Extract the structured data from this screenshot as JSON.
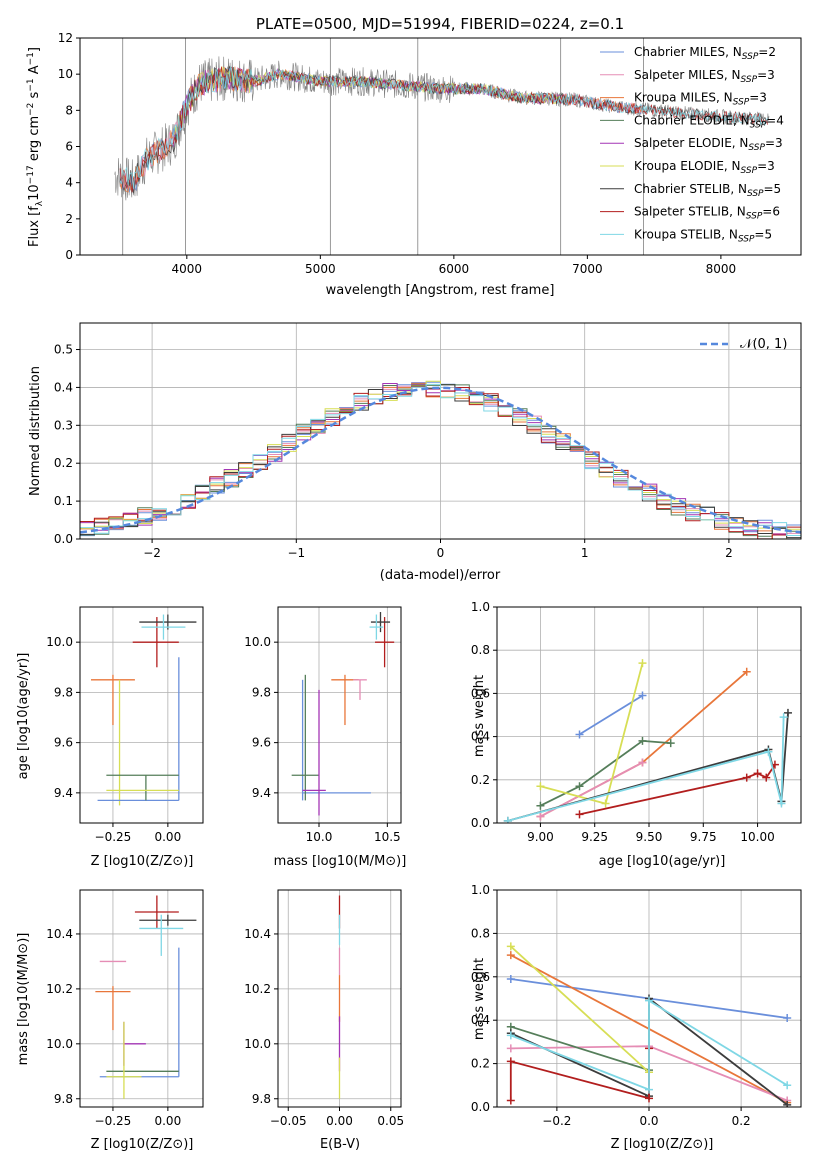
{
  "chart_data": [
    {
      "id": "spectrum",
      "type": "line",
      "title": "PLATE=0500, MJD=51994, FIBERID=0224, z=0.1",
      "xlabel": "wavelength [Angstrom, rest frame]",
      "ylabel": "Flux [f_λ 10^-17 erg cm^-2 s^-1 A^-1]",
      "xlim": [
        3200,
        8600
      ],
      "ylim": [
        0,
        12
      ],
      "xticks": [
        "4000",
        "5000",
        "6000",
        "7000",
        "8000"
      ],
      "yticks": [
        "0",
        "2",
        "4",
        "6",
        "8",
        "10",
        "12"
      ],
      "grid": false,
      "legend_position": "upper right",
      "continuum_points": [
        [
          3450,
          4.5
        ],
        [
          3600,
          4.0
        ],
        [
          3700,
          5.3
        ],
        [
          3800,
          5.8
        ],
        [
          3900,
          6.3
        ],
        [
          4000,
          8.3
        ],
        [
          4100,
          9.5
        ],
        [
          4300,
          9.8
        ],
        [
          4500,
          9.6
        ],
        [
          4700,
          10.0
        ],
        [
          5000,
          9.6
        ],
        [
          5300,
          9.6
        ],
        [
          5600,
          9.4
        ],
        [
          5900,
          9.2
        ],
        [
          6200,
          9.2
        ],
        [
          6500,
          8.7
        ],
        [
          6900,
          8.6
        ],
        [
          7200,
          8.2
        ],
        [
          7500,
          8.0
        ],
        [
          7800,
          7.8
        ],
        [
          8100,
          7.6
        ],
        [
          8350,
          7.5
        ]
      ],
      "series": [
        {
          "name": "Chabrier MILES, N_SSP=2",
          "color": "#6a8fdb",
          "range": [
            3500,
            7420
          ]
        },
        {
          "name": "Salpeter MILES, N_SSP=3",
          "color": "#e58db5",
          "range": [
            3500,
            7420
          ]
        },
        {
          "name": "Kroupa MILES, N_SSP=3",
          "color": "#e8763a",
          "range": [
            3500,
            7420
          ]
        },
        {
          "name": "Chabrier ELODIE, N_SSP=4",
          "color": "#557e5a",
          "range": [
            3900,
            6800
          ]
        },
        {
          "name": "Salpeter ELODIE, N_SSP=3",
          "color": "#a335b5",
          "range": [
            3900,
            6800
          ]
        },
        {
          "name": "Kroupa ELODIE, N_SSP=3",
          "color": "#d7de55",
          "range": [
            3900,
            6800
          ]
        },
        {
          "name": "Chabrier STELIB, N_SSP=5",
          "color": "#3c3c3c",
          "range": [
            3500,
            8350
          ]
        },
        {
          "name": "Salpeter STELIB, N_SSP=6",
          "color": "#b21e1e",
          "range": [
            3500,
            8350
          ]
        },
        {
          "name": "Kroupa STELIB, N_SSP=5",
          "color": "#7fd7e5",
          "range": [
            3500,
            8350
          ]
        }
      ]
    },
    {
      "id": "residuals",
      "type": "line",
      "title": "",
      "xlabel": "(data-model)/error",
      "ylabel": "Normed distribution",
      "xlim": [
        -2.5,
        2.5
      ],
      "ylim": [
        0,
        0.57
      ],
      "xticks": [
        "−2",
        "−1",
        "0",
        "1",
        "2"
      ],
      "yticks": [
        "0.0",
        "0.1",
        "0.2",
        "0.3",
        "0.4",
        "0.5"
      ],
      "grid": true,
      "legend_position": "upper right",
      "legend": "𝒩(0, 1)",
      "series_colors": [
        "#6a8fdb",
        "#e58db5",
        "#e8763a",
        "#557e5a",
        "#a335b5",
        "#d7de55",
        "#3c3c3c",
        "#b21e1e",
        "#7fd7e5"
      ],
      "reference_curve": {
        "mean": 0,
        "sigma": 1,
        "color": "#5588dd"
      }
    },
    {
      "id": "age_vs_Z",
      "type": "scatter",
      "xlabel": "Z [log10(Z/Z⊙)]",
      "ylabel": "age  [log10(age/yr)]",
      "xlim": [
        -0.4,
        0.16
      ],
      "ylim": [
        9.28,
        10.14
      ],
      "xticks": [
        "−0.25",
        "0.00"
      ],
      "xtick_values": [
        -0.25,
        0
      ],
      "yticks": [
        "9.4",
        "9.6",
        "9.8",
        "10.0"
      ],
      "ytick_values": [
        9.4,
        9.6,
        9.8,
        10.0
      ],
      "points": [
        {
          "x": -0.05,
          "y": 10.0,
          "ex": [
            -0.11,
            0.1
          ],
          "ey": [
            -0.1,
            0.1
          ],
          "color": "#b21e1e"
        },
        {
          "x": 0.0,
          "y": 10.08,
          "ex": [
            -0.13,
            0.13
          ],
          "ey": [
            -0.03,
            0.03
          ],
          "color": "#3c3c3c"
        },
        {
          "x": -0.02,
          "y": 10.06,
          "ex": [
            -0.1,
            0.1
          ],
          "ey": [
            -0.05,
            0.05
          ],
          "color": "#7fd7e5"
        },
        {
          "x": -0.25,
          "y": 9.85,
          "ex": [
            -0.1,
            0.1
          ],
          "ey": [
            -0.18,
            0.02
          ],
          "color": "#e8763a"
        },
        {
          "x": -0.22,
          "y": 9.85,
          "ex": [
            0,
            0
          ],
          "ey": [
            -0.5,
            0.0
          ],
          "color": "#d7de55"
        },
        {
          "x": 0.05,
          "y": 9.37,
          "ex": [
            -0.37,
            0
          ],
          "ey": [
            0,
            0.57
          ],
          "color": "#6a8fdb"
        },
        {
          "x": -0.1,
          "y": 9.47,
          "ex": [
            -0.18,
            0.15
          ],
          "ey": [
            -0.1,
            0
          ],
          "color": "#557e5a"
        },
        {
          "x": -0.1,
          "y": 9.41,
          "ex": [
            -0.18,
            0.15
          ],
          "ey": [
            0,
            0
          ],
          "color": "#d7de55"
        }
      ]
    },
    {
      "id": "age_vs_mass",
      "type": "scatter",
      "xlabel": "mass [log10(M/M⊙)]",
      "ylabel": "",
      "xlim": [
        9.7,
        10.6
      ],
      "ylim": [
        9.28,
        10.14
      ],
      "xticks": [
        "10.0",
        "10.5"
      ],
      "xtick_values": [
        10.0,
        10.5
      ],
      "yticks": [
        "9.4",
        "9.6",
        "9.8",
        "10.0"
      ],
      "ytick_values": [
        9.4,
        9.6,
        9.8,
        10.0
      ],
      "points": [
        {
          "x": 10.48,
          "y": 10.0,
          "ex": [
            -0.07,
            0.07
          ],
          "ey": [
            -0.1,
            0.1
          ],
          "color": "#b21e1e"
        },
        {
          "x": 10.45,
          "y": 10.08,
          "ex": [
            -0.07,
            0.07
          ],
          "ey": [
            -0.04,
            0.04
          ],
          "color": "#3c3c3c"
        },
        {
          "x": 10.42,
          "y": 10.06,
          "ex": [
            -0.05,
            0.05
          ],
          "ey": [
            -0.05,
            0.05
          ],
          "color": "#7fd7e5"
        },
        {
          "x": 10.19,
          "y": 9.85,
          "ex": [
            -0.1,
            0.1
          ],
          "ey": [
            -0.18,
            0.02
          ],
          "color": "#e8763a"
        },
        {
          "x": 10.3,
          "y": 9.85,
          "ex": [
            -0.05,
            0.05
          ],
          "ey": [
            -0.08,
            0.0
          ],
          "color": "#e58db5"
        },
        {
          "x": 9.88,
          "y": 9.4,
          "ex": [
            0,
            0.5
          ],
          "ey": [
            -0.03,
            0.45
          ],
          "color": "#6a8fdb"
        },
        {
          "x": 9.9,
          "y": 9.47,
          "ex": [
            -0.1,
            0.1
          ],
          "ey": [
            -0.1,
            0.4
          ],
          "color": "#557e5a"
        },
        {
          "x": 10.0,
          "y": 9.41,
          "ex": [
            -0.12,
            0.05
          ],
          "ey": [
            -0.1,
            0.4
          ],
          "color": "#a335b5"
        }
      ]
    },
    {
      "id": "massweight_vs_age",
      "type": "line",
      "xlabel": "age  [log10(age/yr)]",
      "ylabel": "mass weight",
      "xlim": [
        8.8,
        10.2
      ],
      "ylim": [
        0,
        1.0
      ],
      "xticks": [
        "9.00",
        "9.25",
        "9.50",
        "9.75",
        "10.00"
      ],
      "xtick_values": [
        9.0,
        9.25,
        9.5,
        9.75,
        10.0
      ],
      "yticks": [
        "0.0",
        "0.2",
        "0.4",
        "0.6",
        "0.8",
        "1.0"
      ],
      "ytick_values": [
        0,
        0.2,
        0.4,
        0.6,
        0.8,
        1.0
      ],
      "series": [
        {
          "name": "Chabrier MILES",
          "color": "#6a8fdb",
          "points": [
            [
              9.18,
              0.41
            ],
            [
              9.47,
              0.59
            ]
          ]
        },
        {
          "name": "Kroupa MILES",
          "color": "#e8763a",
          "points": [
            [
              9.0,
              0.03
            ],
            [
              9.47,
              0.28
            ],
            [
              9.95,
              0.7
            ]
          ]
        },
        {
          "name": "Salpeter MILES",
          "color": "#e58db5",
          "points": [
            [
              9.0,
              0.03
            ],
            [
              9.47,
              0.28
            ]
          ]
        },
        {
          "name": "Chabrier ELODIE",
          "color": "#557e5a",
          "points": [
            [
              9.0,
              0.08
            ],
            [
              9.18,
              0.17
            ],
            [
              9.47,
              0.38
            ],
            [
              9.6,
              0.37
            ]
          ]
        },
        {
          "name": "Kroupa ELODIE",
          "color": "#d7de55",
          "points": [
            [
              9.0,
              0.17
            ],
            [
              9.3,
              0.09
            ],
            [
              9.47,
              0.74
            ]
          ]
        },
        {
          "name": "Chabrier STELIB",
          "color": "#3c3c3c",
          "points": [
            [
              8.85,
              0.01
            ],
            [
              10.05,
              0.34
            ],
            [
              10.11,
              0.1
            ],
            [
              10.14,
              0.51
            ]
          ]
        },
        {
          "name": "Salpeter STELIB",
          "color": "#b21e1e",
          "points": [
            [
              9.18,
              0.04
            ],
            [
              9.95,
              0.21
            ],
            [
              10.0,
              0.23
            ],
            [
              10.04,
              0.21
            ],
            [
              10.08,
              0.27
            ]
          ]
        },
        {
          "name": "Kroupa STELIB",
          "color": "#7fd7e5",
          "points": [
            [
              8.85,
              0.01
            ],
            [
              10.05,
              0.33
            ],
            [
              10.11,
              0.09
            ],
            [
              10.12,
              0.49
            ]
          ]
        }
      ]
    },
    {
      "id": "mass_vs_Z",
      "type": "scatter",
      "xlabel": "Z [log10(Z/Z⊙)]",
      "ylabel": "mass [log10(M/M⊙)]",
      "xlim": [
        -0.4,
        0.16
      ],
      "ylim": [
        9.77,
        10.56
      ],
      "xticks": [
        "−0.25",
        "0.00"
      ],
      "xtick_values": [
        -0.25,
        0
      ],
      "yticks": [
        "9.8",
        "10.0",
        "10.2",
        "10.4"
      ],
      "ytick_values": [
        9.8,
        10.0,
        10.2,
        10.4
      ],
      "points": [
        {
          "x": -0.05,
          "y": 10.48,
          "ex": [
            -0.1,
            0.1
          ],
          "ey": [
            -0.06,
            0.06
          ],
          "color": "#b21e1e"
        },
        {
          "x": 0.0,
          "y": 10.45,
          "ex": [
            -0.13,
            0.13
          ],
          "ey": [
            -0.02,
            0.02
          ],
          "color": "#3c3c3c"
        },
        {
          "x": -0.03,
          "y": 10.42,
          "ex": [
            -0.1,
            0.1
          ],
          "ey": [
            -0.1,
            0.05
          ],
          "color": "#7fd7e5"
        },
        {
          "x": -0.25,
          "y": 10.19,
          "ex": [
            -0.08,
            0.08
          ],
          "ey": [
            -0.14,
            0.02
          ],
          "color": "#e8763a"
        },
        {
          "x": -0.25,
          "y": 10.3,
          "ex": [
            -0.06,
            0.06
          ],
          "ey": [
            0,
            0
          ],
          "color": "#e58db5"
        },
        {
          "x": 0.05,
          "y": 9.88,
          "ex": [
            -0.36,
            0
          ],
          "ey": [
            0,
            0.47
          ],
          "color": "#6a8fdb"
        },
        {
          "x": -0.1,
          "y": 9.9,
          "ex": [
            -0.18,
            0.15
          ],
          "ey": [
            0,
            0
          ],
          "color": "#557e5a"
        },
        {
          "x": -0.2,
          "y": 10.0,
          "ex": [
            0,
            0.1
          ],
          "ey": [
            -0.08,
            0.08
          ],
          "color": "#a335b5"
        },
        {
          "x": -0.2,
          "y": 9.88,
          "ex": [
            -0.08,
            0.08
          ],
          "ey": [
            -0.08,
            0.2
          ],
          "color": "#d7de55"
        }
      ]
    },
    {
      "id": "mass_vs_EBV",
      "type": "scatter",
      "xlabel": "E(B-V)",
      "ylabel": "",
      "xlim": [
        -0.06,
        0.06
      ],
      "ylim": [
        9.77,
        10.56
      ],
      "xticks": [
        "−0.05",
        "0.00",
        "0.05"
      ],
      "xtick_values": [
        -0.05,
        0,
        0.05
      ],
      "yticks": [
        "9.8",
        "10.0",
        "10.2",
        "10.4"
      ],
      "ytick_values": [
        9.8,
        10.0,
        10.2,
        10.4
      ],
      "points": [
        {
          "x": 0,
          "y": 10.48,
          "ex": [
            0,
            0
          ],
          "ey": [
            -0.06,
            0.06
          ],
          "color": "#b21e1e"
        },
        {
          "x": 0,
          "y": 10.3,
          "ex": [
            0,
            0
          ],
          "ey": [
            -0.05,
            0.05
          ],
          "color": "#e58db5"
        },
        {
          "x": 0,
          "y": 10.2,
          "ex": [
            0,
            0
          ],
          "ey": [
            -0.12,
            0.05
          ],
          "color": "#e8763a"
        },
        {
          "x": 0,
          "y": 10.0,
          "ex": [
            0,
            0
          ],
          "ey": [
            -0.1,
            0.1
          ],
          "color": "#a335b5"
        },
        {
          "x": 0,
          "y": 9.9,
          "ex": [
            0,
            0
          ],
          "ey": [
            -0.1,
            0.05
          ],
          "color": "#d7de55"
        },
        {
          "x": 0,
          "y": 10.42,
          "ex": [
            0,
            0
          ],
          "ey": [
            -0.06,
            0.05
          ],
          "color": "#7fd7e5"
        }
      ]
    },
    {
      "id": "massweight_vs_Z",
      "type": "line",
      "xlabel": "Z [log10(Z/Z⊙)]",
      "ylabel": "mass weight",
      "xlim": [
        -0.33,
        0.33
      ],
      "ylim": [
        0,
        1.0
      ],
      "xticks": [
        "−0.2",
        "0.0",
        "0.2"
      ],
      "xtick_values": [
        -0.2,
        0,
        0.2
      ],
      "yticks": [
        "0.0",
        "0.2",
        "0.4",
        "0.6",
        "0.8",
        "1.0"
      ],
      "ytick_values": [
        0,
        0.2,
        0.4,
        0.6,
        0.8,
        1.0
      ],
      "series": [
        {
          "name": "Chabrier MILES",
          "color": "#6a8fdb",
          "points": [
            [
              -0.3,
              0.59
            ],
            [
              0.3,
              0.41
            ]
          ]
        },
        {
          "name": "Kroupa MILES",
          "color": "#e8763a",
          "points": [
            [
              -0.3,
              0.7
            ],
            [
              0.3,
              0.02
            ]
          ]
        },
        {
          "name": "Salpeter MILES",
          "color": "#e58db5",
          "points": [
            [
              -0.3,
              0.27
            ],
            [
              0.0,
              0.28
            ],
            [
              0.3,
              0.03
            ]
          ]
        },
        {
          "name": "Chabrier ELODIE",
          "color": "#557e5a",
          "points": [
            [
              -0.3,
              0.37
            ],
            [
              0.0,
              0.17
            ]
          ]
        },
        {
          "name": "Kroupa ELODIE",
          "color": "#d7de55",
          "points": [
            [
              -0.3,
              0.74
            ],
            [
              0.0,
              0.16
            ]
          ]
        },
        {
          "name": "Chabrier STELIB",
          "color": "#3c3c3c",
          "points": [
            [
              -0.3,
              0.34
            ],
            [
              0.0,
              0.05
            ],
            [
              0.0,
              0.5
            ],
            [
              0.3,
              0.01
            ]
          ]
        },
        {
          "name": "Salpeter STELIB",
          "color": "#b21e1e",
          "points": [
            [
              -0.3,
              0.03
            ],
            [
              -0.3,
              0.21
            ],
            [
              0.0,
              0.04
            ],
            [
              0.0,
              0.27
            ]
          ]
        },
        {
          "name": "Kroupa STELIB",
          "color": "#7fd7e5",
          "points": [
            [
              -0.3,
              0.33
            ],
            [
              0.0,
              0.08
            ],
            [
              0.0,
              0.49
            ],
            [
              0.3,
              0.1
            ]
          ]
        }
      ]
    }
  ]
}
